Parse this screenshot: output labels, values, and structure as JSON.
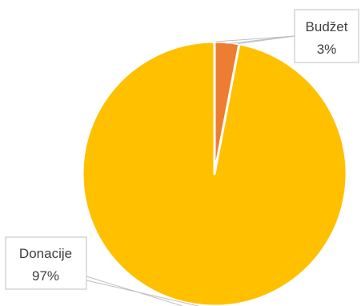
{
  "chart_data": {
    "type": "pie",
    "title": "",
    "slices": [
      {
        "label": "Budžet",
        "value": 3,
        "display": "3%",
        "color": "#ED7D31"
      },
      {
        "label": "Donacije",
        "value": 97,
        "display": "97%",
        "color": "#FFC000"
      }
    ],
    "start_angle_deg": 0,
    "direction": "clockwise",
    "legend": "none",
    "data_labels": "callout"
  }
}
